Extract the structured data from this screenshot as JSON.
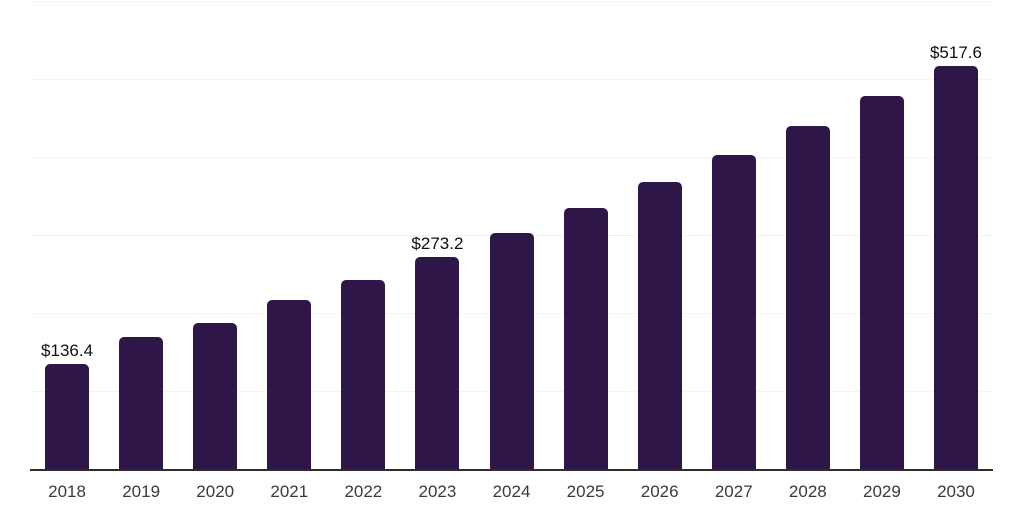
{
  "chart_data": {
    "type": "bar",
    "title": "",
    "xlabel": "",
    "ylabel": "",
    "categories": [
      "2018",
      "2019",
      "2020",
      "2021",
      "2022",
      "2023",
      "2024",
      "2025",
      "2026",
      "2027",
      "2028",
      "2029",
      "2030"
    ],
    "values": [
      136.4,
      170.4,
      188.2,
      217.8,
      243.4,
      273.2,
      303.6,
      335.7,
      369.0,
      403.6,
      440.7,
      479.2,
      517.6
    ],
    "data_labels": [
      "$136.4",
      "",
      "",
      "",
      "",
      "$273.2",
      "",
      "",
      "",
      "",
      "",
      "",
      "$517.6"
    ],
    "labeled_years": [
      "2018",
      "2023",
      "2030"
    ],
    "currency_prefix": "$",
    "ylim": [
      0,
      600
    ],
    "gridline_interval": 100,
    "grid": "horizontal-only",
    "y_tick_labels_shown": false,
    "legend": "none",
    "colors": {
      "bar": "#2e1648",
      "gridline": "#f3f2f4",
      "axis_line": "#2d2d2d",
      "value_label": "#0f0f0f",
      "tick_label": "#3a3a3a",
      "background": "#ffffff"
    }
  }
}
